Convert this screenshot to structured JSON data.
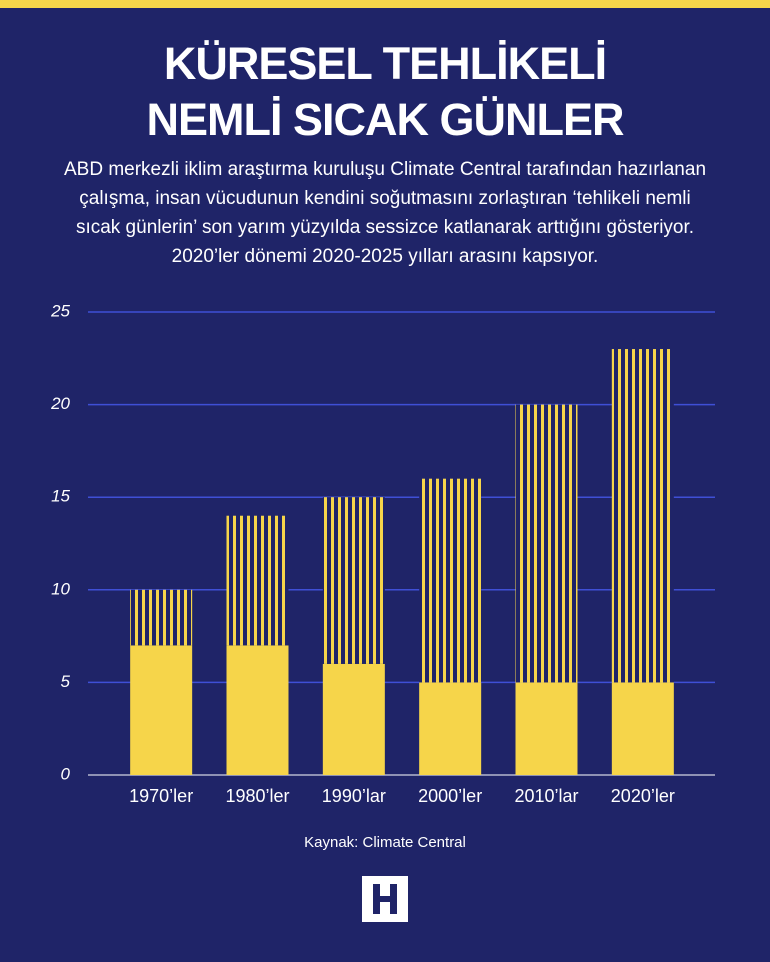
{
  "chart_data": {
    "type": "bar",
    "stacked": true,
    "title": [
      "KÜRESEL TEHLİKELİ",
      "NEMLİ SICAK GÜNLER"
    ],
    "subtitle": "ABD merkezli iklim araştırma kuruluşu Climate Central tarafından hazırlanan çalışma, insan vücudunun kendini soğutmasını zorlaştıran ‘tehlikeli nemli sıcak günlerin’ son yarım yüzyılda sessizce katlanarak arttığını gösteriyor. 2020’ler dönemi 2020-2025 yılları arasını kapsıyor.",
    "source": "Kaynak: Climate Central",
    "categories": [
      "1970’ler",
      "1980’ler",
      "1990’lar",
      "2000’ler",
      "2010’lar",
      "2020’ler"
    ],
    "series": [
      {
        "color": "#f6d54a",
        "values": [
          7,
          7,
          6,
          5,
          5,
          5
        ]
      },
      {
        "color": "#f6d54a",
        "hatch": "vertical",
        "values": [
          3,
          7,
          9,
          11,
          15,
          18
        ]
      }
    ],
    "ylim": [
      0,
      25
    ],
    "yticks": [
      0,
      5,
      10,
      15,
      20,
      25
    ],
    "grid": true
  }
}
